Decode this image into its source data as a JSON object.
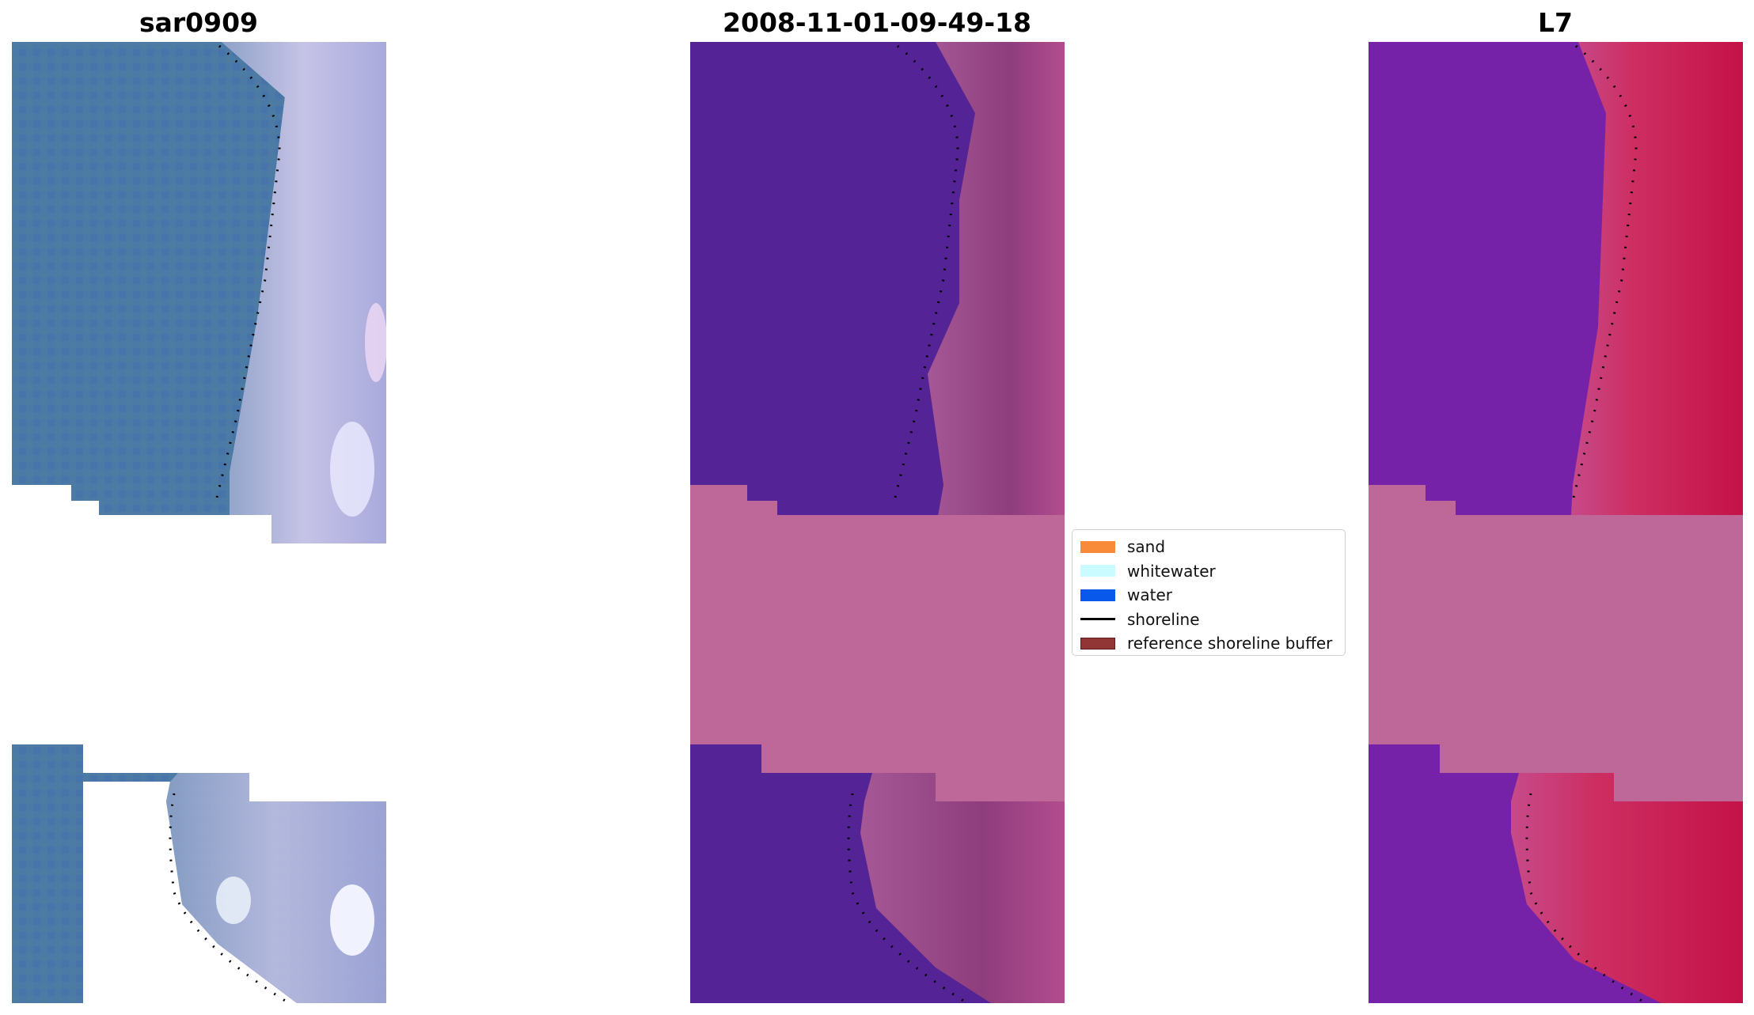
{
  "panels": [
    {
      "title": "sar0909"
    },
    {
      "title": "2008-11-01-09-49-18"
    },
    {
      "title": "L7"
    }
  ],
  "legend": {
    "items": [
      {
        "label": "sand",
        "color": "#f78b3a"
      },
      {
        "label": "whitewater",
        "color": "#c9fbff"
      },
      {
        "label": "water",
        "color": "#0958ec"
      },
      {
        "label": "shoreline",
        "color": "#000000",
        "kind": "line"
      },
      {
        "label": "reference shoreline buffer",
        "color": "#913535",
        "border": "#5e1c1c"
      }
    ]
  },
  "colors": {
    "rgb_water": "#4b7aa8",
    "rgb_shore": "#b7b8e0",
    "class_water": "#542395",
    "class_beach": "#a04e8e",
    "buffer_mask": "#bd6898",
    "l7_water": "#7a23a8",
    "l7_land": "#c92a5c"
  }
}
